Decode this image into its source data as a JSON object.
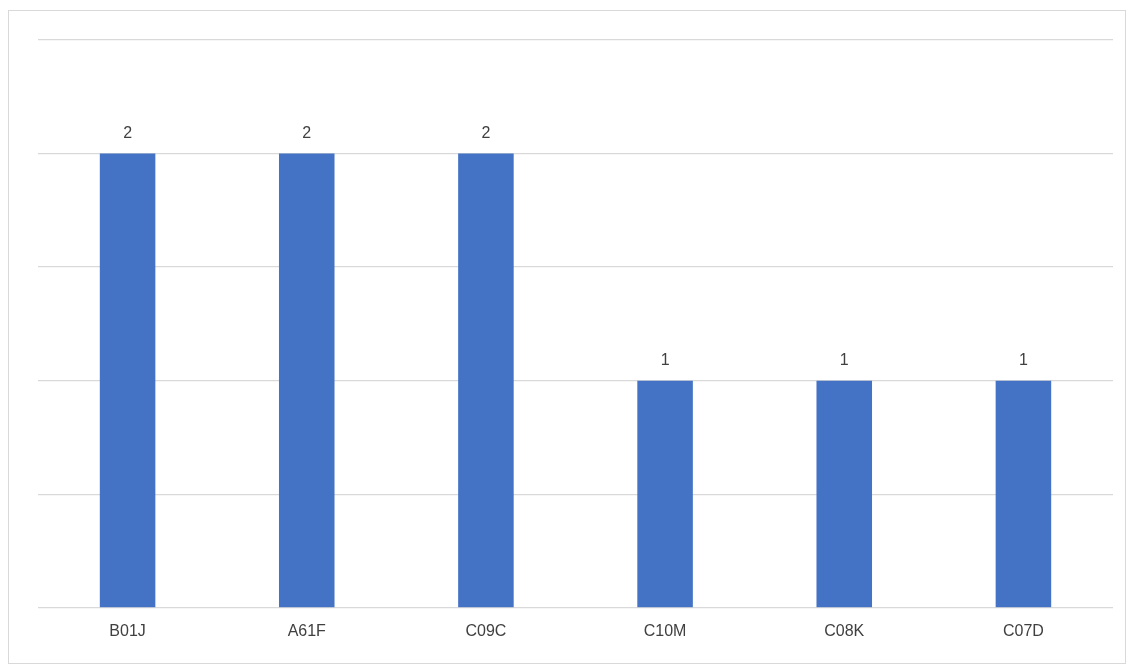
{
  "chart_data": {
    "type": "bar",
    "categories": [
      "B01J",
      "A61F",
      "C09C",
      "C10M",
      "C08K",
      "C07D"
    ],
    "values": [
      2,
      2,
      2,
      1,
      1,
      1
    ],
    "color": "#4472c4",
    "ylim": [
      0,
      2.5
    ],
    "yticks": [
      {
        "value": 0,
        "label": null
      },
      {
        "value": 0.5,
        "label": null
      },
      {
        "value": 1,
        "label": null
      },
      {
        "value": 1.5,
        "label": null
      },
      {
        "value": 2,
        "label": null
      },
      {
        "value": 2.5,
        "label": null
      }
    ],
    "grid": "y",
    "tick_labels": "x",
    "data_labels": true,
    "legend": false
  }
}
